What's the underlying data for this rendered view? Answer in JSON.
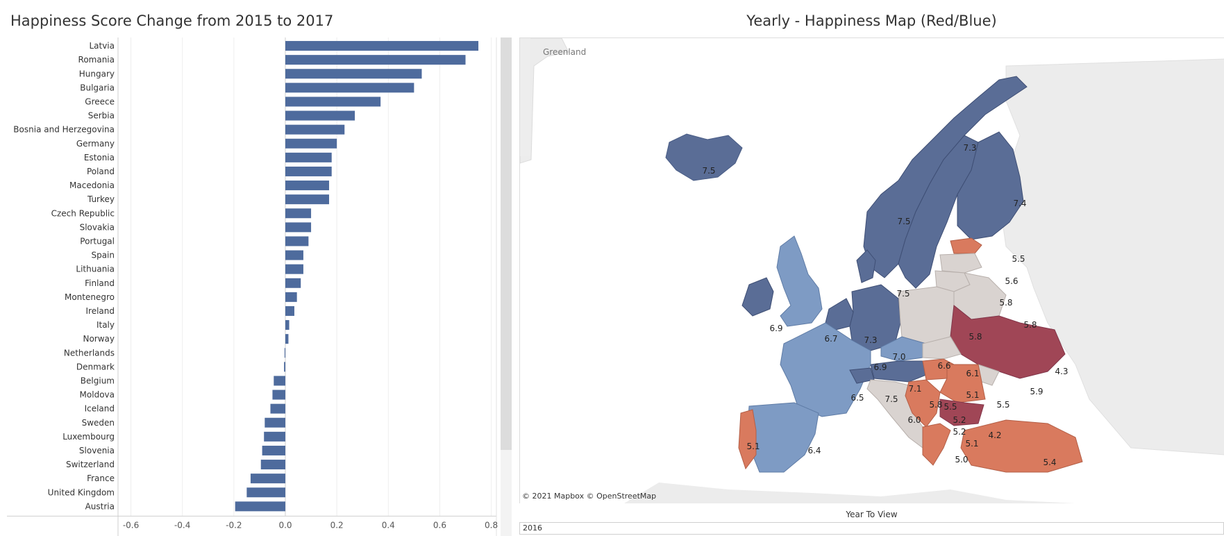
{
  "bar_panel": {
    "title": "Happiness Score Change from 2015 to 2017"
  },
  "map_panel": {
    "title": "Yearly - Happiness Map (Red/Blue)",
    "attribution": "© 2021 Mapbox  © OpenStreetMap",
    "place_label": "Greenland",
    "country_labels": [
      {
        "text": "7.5",
        "color": "#5a6d96"
      },
      {
        "text": "7.3",
        "color": "#5a6d96"
      },
      {
        "text": "7.4",
        "color": "#5a6d96"
      },
      {
        "text": "7.5",
        "color": "#5a6d96"
      },
      {
        "text": "5.5",
        "color": "#d97a5e"
      },
      {
        "text": "5.6",
        "color": "#d9d3d0"
      },
      {
        "text": "5.8",
        "color": "#d9d3d0"
      },
      {
        "text": "7.5",
        "color": "#5a6d96"
      },
      {
        "text": "5.8",
        "color": "#d9d3d0"
      },
      {
        "text": "6.9",
        "color": "#5a6d96"
      },
      {
        "text": "6.7",
        "color": "#7e9bc4"
      },
      {
        "text": "7.3",
        "color": "#5a6d96"
      },
      {
        "text": "7.0",
        "color": "#5a6d96"
      },
      {
        "text": "5.8",
        "color": "#d9d3d0"
      },
      {
        "text": "4.3",
        "color": "#a04656"
      },
      {
        "text": "6.9",
        "color": "#5a6d96"
      },
      {
        "text": "6.6",
        "color": "#7e9bc4"
      },
      {
        "text": "6.1",
        "color": "#d9d3d0"
      },
      {
        "text": "5.9",
        "color": "#d9d3d0"
      },
      {
        "text": "7.1",
        "color": "#5a6d96"
      },
      {
        "text": "5.1",
        "color": "#d97a5e"
      },
      {
        "text": "5.5",
        "color": "#d97a5e"
      },
      {
        "text": "6.5",
        "color": "#7e9bc4"
      },
      {
        "text": "7.5",
        "color": "#5a6d96"
      },
      {
        "text": "5.8",
        "color": "#d9d3d0"
      },
      {
        "text": "5.5",
        "color": "#d97a5e"
      },
      {
        "text": "6.0",
        "color": "#d9d3d0"
      },
      {
        "text": "5.2",
        "color": "#d97a5e"
      },
      {
        "text": "5.2",
        "color": "#d97a5e"
      },
      {
        "text": "4.2",
        "color": "#a04656"
      },
      {
        "text": "5.1",
        "color": "#d97a5e"
      },
      {
        "text": "6.4",
        "color": "#7e9bc4"
      },
      {
        "text": "5.1",
        "color": "#a04656"
      },
      {
        "text": "5.0",
        "color": "#d97a5e"
      },
      {
        "text": "5.4",
        "color": "#d97a5e"
      }
    ]
  },
  "filter": {
    "label": "Year To View",
    "value": "2016"
  },
  "colors": {
    "bar": "#4e6b9d",
    "blue_dark": "#5a6d96",
    "blue_light": "#7e9bc4",
    "neutral": "#d9d3d0",
    "red_light": "#d97a5e",
    "red_dark": "#a04656"
  },
  "chart_data": {
    "type": "bar",
    "title": "Happiness Score Change from 2015 to 2017",
    "orientation": "horizontal",
    "categories": [
      "Latvia",
      "Romania",
      "Hungary",
      "Bulgaria",
      "Greece",
      "Serbia",
      "Bosnia and Herzegovina",
      "Germany",
      "Estonia",
      "Poland",
      "Macedonia",
      "Turkey",
      "Czech Republic",
      "Slovakia",
      "Portugal",
      "Spain",
      "Lithuania",
      "Finland",
      "Montenegro",
      "Ireland",
      "Italy",
      "Norway",
      "Netherlands",
      "Denmark",
      "Belgium",
      "Moldova",
      "Iceland",
      "Sweden",
      "Luxembourg",
      "Slovenia",
      "Switzerland",
      "France",
      "United Kingdom",
      "Austria"
    ],
    "values": [
      0.75,
      0.7,
      0.53,
      0.5,
      0.37,
      0.27,
      0.23,
      0.2,
      0.18,
      0.18,
      0.17,
      0.17,
      0.1,
      0.1,
      0.09,
      0.07,
      0.07,
      0.06,
      0.045,
      0.035,
      0.015,
      0.012,
      -0.003,
      -0.005,
      -0.045,
      -0.05,
      -0.058,
      -0.08,
      -0.083,
      -0.09,
      -0.095,
      -0.135,
      -0.15,
      -0.195
    ],
    "xticks": [
      "-0.6",
      "-0.4",
      "-0.2",
      "0.0",
      "0.2",
      "0.4",
      "0.6",
      "0.8"
    ],
    "xlim": [
      -0.65,
      0.82
    ],
    "xlabel": "",
    "ylabel": ""
  }
}
